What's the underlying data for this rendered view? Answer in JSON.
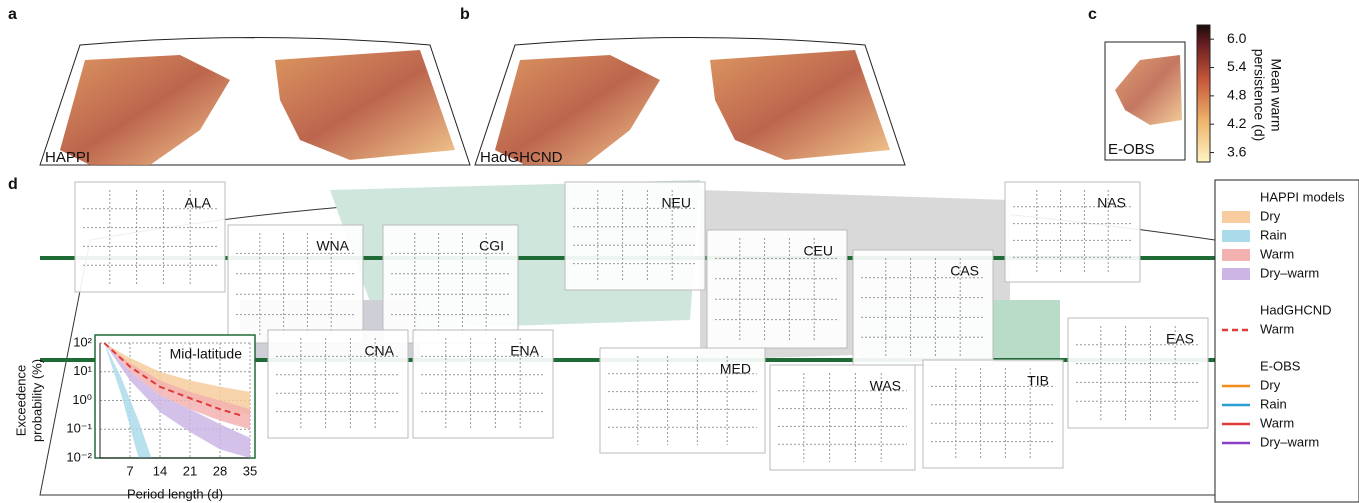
{
  "panels": {
    "a": {
      "label": "a",
      "name": "HAPPI"
    },
    "b": {
      "label": "b",
      "name": "HadGHCND"
    },
    "c": {
      "label": "c",
      "name": "E-OBS"
    },
    "d": {
      "label": "d"
    }
  },
  "colorbar": {
    "title": [
      "Mean warm",
      "persistence (d)"
    ],
    "lim": [
      3.4,
      6.3
    ],
    "ticks": [
      3.6,
      4.2,
      4.8,
      5.4,
      {
        "value": 6,
        "label": "6.0"
      }
    ]
  },
  "regions": [
    "ALA",
    "WNA",
    "CGI",
    "NEU",
    "CEU",
    "CAS",
    "NAS",
    "CNA",
    "ENA",
    "MED",
    "WAS",
    "TIB",
    "EAS"
  ],
  "inset": {
    "title": "Mid-latitude",
    "xlabel": "Period length (d)",
    "ylabel": [
      "Exceedence",
      "probability (%)"
    ],
    "xlim": [
      0,
      35
    ],
    "ylim": [
      0.01,
      100
    ],
    "log": true,
    "grid": true,
    "xticks": [
      7,
      14,
      21,
      28,
      35
    ],
    "yticks": [
      {
        "value": 0.01,
        "label": "10⁻²"
      },
      {
        "value": 0.1,
        "label": "10⁻¹"
      },
      {
        "value": 1,
        "label": "10⁰"
      },
      {
        "value": 10,
        "label": "10¹"
      },
      {
        "value": 100,
        "label": "10²"
      }
    ],
    "bands": [
      {
        "name": "Dry",
        "color": "#f7cc9e",
        "x": [
          1,
          7,
          14,
          21,
          28,
          35
        ],
        "high": [
          100,
          30,
          10,
          5,
          3,
          2
        ],
        "low": [
          100,
          15,
          3,
          1.2,
          0.6,
          0.3
        ]
      },
      {
        "name": "Warm",
        "color": "#f3b2b0",
        "x": [
          1,
          7,
          14,
          21,
          28,
          35
        ],
        "high": [
          100,
          20,
          5,
          2,
          1,
          0.5
        ],
        "low": [
          100,
          10,
          1.5,
          0.5,
          0.2,
          0.1
        ]
      },
      {
        "name": "Dry–warm",
        "color": "#cdb6e6",
        "x": [
          1,
          7,
          14,
          21,
          28,
          35
        ],
        "high": [
          100,
          10,
          1.5,
          0.5,
          0.15,
          0.05
        ],
        "low": [
          100,
          5,
          0.4,
          0.08,
          0.02,
          0.01
        ]
      },
      {
        "name": "Rain",
        "color": "#abdbea",
        "x": [
          1,
          5,
          9,
          12
        ],
        "high": [
          100,
          6,
          0.2,
          0.01
        ],
        "low": [
          100,
          1.5,
          0.01,
          0.01
        ]
      }
    ],
    "line": {
      "name": "Warm",
      "color": "#e03a3a",
      "x": [
        1,
        7,
        14,
        21,
        28,
        33
      ],
      "values": [
        100,
        15,
        3,
        1.2,
        0.5,
        0.3
      ]
    }
  },
  "legend": [
    {
      "title": "HAPPI models",
      "entries": [
        {
          "name": "Dry",
          "color": "#f7cc9e",
          "style": "band"
        },
        {
          "name": "Rain",
          "color": "#abdbea",
          "style": "band"
        },
        {
          "name": "Warm",
          "color": "#f3b2b0",
          "style": "band"
        },
        {
          "name": "Dry–warm",
          "color": "#cdb6e6",
          "style": "band"
        }
      ]
    },
    {
      "title": "HadGHCND",
      "entries": [
        {
          "name": "Warm",
          "color": "#e03a3a",
          "style": "dashed"
        }
      ]
    },
    {
      "title": "E-OBS",
      "entries": [
        {
          "name": "Dry",
          "color": "#f08c1a",
          "style": "line"
        },
        {
          "name": "Rain",
          "color": "#2a9fd6",
          "style": "line"
        },
        {
          "name": "Warm",
          "color": "#e03a3a",
          "style": "line"
        },
        {
          "name": "Dry–warm",
          "color": "#8a3fc7",
          "style": "line"
        }
      ]
    }
  ]
}
